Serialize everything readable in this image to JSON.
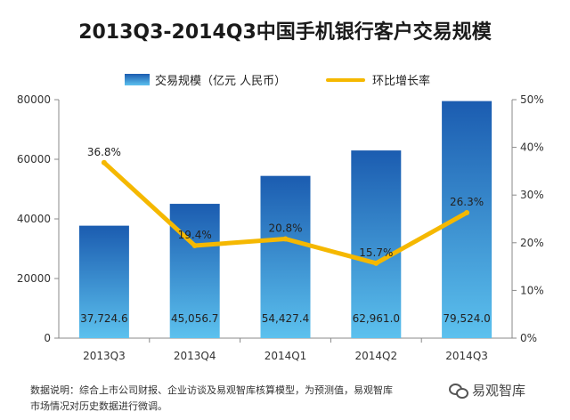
{
  "chart_data": {
    "type": "bar",
    "title": "2013Q3-2014Q3中国手机银行客户交易规模",
    "categories": [
      "2013Q3",
      "2013Q4",
      "2014Q1",
      "2014Q2",
      "2014Q3"
    ],
    "series": [
      {
        "name": "交易规模（亿元 人民币）",
        "type": "bar",
        "axis": "left",
        "values": [
          37724.6,
          45056.7,
          54427.4,
          62961.0,
          79524.0
        ],
        "labels": [
          "37,724.6",
          "45,056.7",
          "54,427.4",
          "62,961.0",
          "79,524.0"
        ]
      },
      {
        "name": "环比增长率",
        "type": "line",
        "axis": "right",
        "values": [
          36.8,
          19.4,
          20.8,
          15.7,
          26.3
        ],
        "labels": [
          "36.8%",
          "19.4%",
          "20.8%",
          "15.7%",
          "26.3%"
        ]
      }
    ],
    "y_left": {
      "min": 0,
      "max": 80000,
      "ticks": [
        "0",
        "20000",
        "40000",
        "60000",
        "80000"
      ]
    },
    "y_right": {
      "min": 0,
      "max": 50,
      "ticks": [
        "0%",
        "10%",
        "20%",
        "30%",
        "40%",
        "50%"
      ]
    },
    "legend_position": "top",
    "grid": false,
    "colors": {
      "bar_top": "#1b5cb0",
      "bar_bottom": "#5cc1ee",
      "line": "#f5b800"
    }
  },
  "legend": {
    "bar_label": "交易规模（亿元 人民币）",
    "line_label": "环比增长率"
  },
  "footnote": {
    "line1": "数据说明：综合上市公司财报、企业访谈及易观智库核算模型，为预测值，易观智库",
    "line2": "市场情况对历史数据进行微调。"
  },
  "watermark": {
    "text": "易观智库"
  }
}
